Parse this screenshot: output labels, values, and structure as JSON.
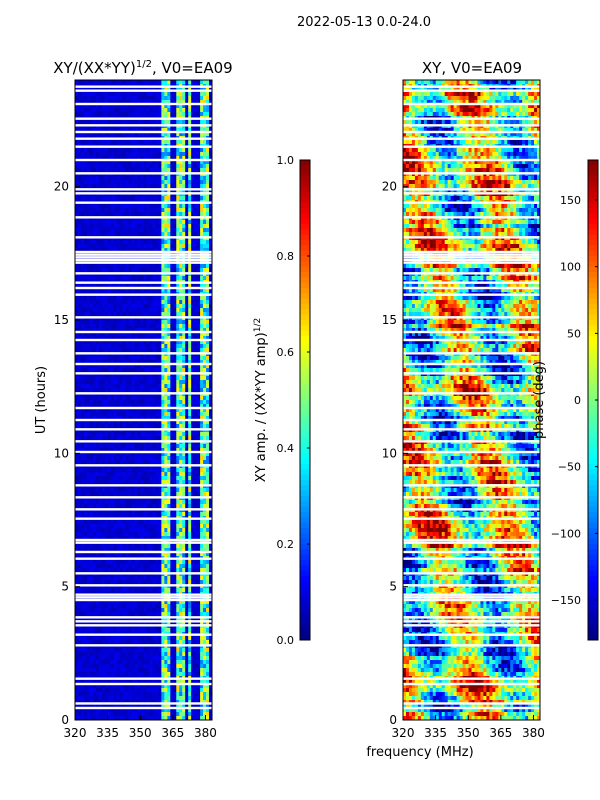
{
  "figure": {
    "suptitle": "2022-05-13 0.0-24.0",
    "shared_xlabel": "frequency (MHz)"
  },
  "colors": {
    "flag_row": "#ffffff",
    "jet": [
      "#00007f",
      "#0000ff",
      "#007fff",
      "#00ffff",
      "#7fff7f",
      "#ffff00",
      "#ff7f00",
      "#ff0000",
      "#7f0000"
    ]
  },
  "chart_data": [
    {
      "type": "heatmap",
      "title_main": "XY/(XX*YY)",
      "title_sup": "1/2",
      "title_rest": ", V0=EA09",
      "xlabel": "",
      "ylabel": "UT (hours)",
      "xlim": [
        320,
        383
      ],
      "ylim": [
        0,
        24
      ],
      "xticks": [
        320,
        335,
        350,
        365,
        380
      ],
      "yticks": [
        0,
        5,
        10,
        15,
        20
      ],
      "colorbar": {
        "label_main": "XY amp. / (XX*YY amp)",
        "label_sup": "1/2",
        "range": [
          0.0,
          1.0
        ],
        "ticks": [
          "0.0",
          "0.2",
          "0.4",
          "0.6",
          "0.8",
          "1.0"
        ],
        "tick_values": [
          0.0,
          0.2,
          0.4,
          0.6,
          0.8,
          1.0
        ]
      },
      "bright_bands_mhz": [
        [
          360,
          364
        ],
        [
          366,
          370
        ],
        [
          372,
          374
        ],
        [
          377,
          381
        ]
      ],
      "background_value": 0.05,
      "band_value": 0.45
    },
    {
      "type": "heatmap",
      "title_main": "XY, V0=EA09",
      "xlabel": "frequency (MHz)",
      "ylabel": "",
      "xlim": [
        320,
        383
      ],
      "ylim": [
        0,
        24
      ],
      "xticks": [
        320,
        335,
        350,
        365,
        380
      ],
      "yticks": [
        0,
        5,
        10,
        15,
        20
      ],
      "colorbar": {
        "label_main": "phase (deg)",
        "range": [
          -180,
          180
        ],
        "ticks": [
          "−150",
          "−100",
          "−50",
          "0",
          "50",
          "100",
          "150"
        ],
        "tick_values": [
          -150,
          -100,
          -50,
          0,
          50,
          100,
          150
        ]
      }
    }
  ],
  "flagged_hours": [
    0.45,
    0.62,
    1.35,
    1.55,
    2.8,
    3.2,
    3.55,
    3.7,
    3.85,
    4.5,
    4.6,
    4.7,
    5.05,
    5.5,
    6.05,
    6.3,
    6.65,
    6.75,
    7.55,
    7.9,
    8.35,
    8.8,
    9.55,
    10.05,
    10.45,
    10.9,
    11.25,
    11.7,
    12.25,
    13.0,
    13.35,
    13.75,
    14.25,
    14.55,
    15.1,
    15.95,
    16.2,
    16.4,
    16.75,
    17.15,
    17.25,
    17.35,
    17.45,
    17.55,
    18.1,
    18.85,
    19.4,
    19.75,
    19.9,
    20.5,
    21.0,
    21.5,
    21.8,
    22.05,
    22.3,
    22.55,
    23.1,
    23.6,
    23.75
  ]
}
